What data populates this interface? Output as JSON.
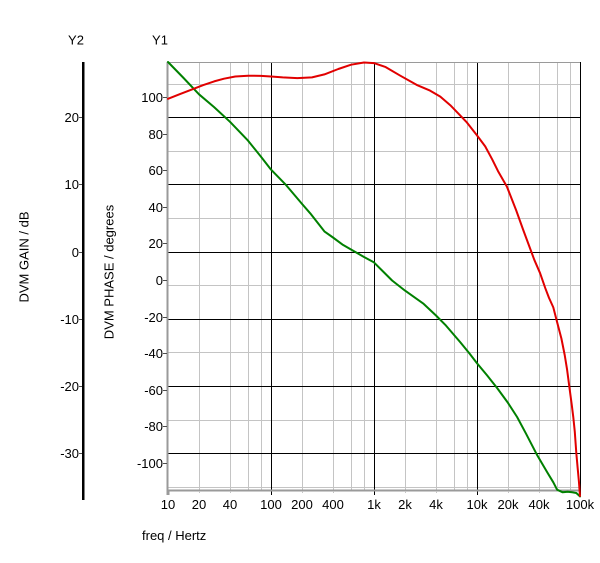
{
  "headers": {
    "y2": "Y2",
    "y1": "Y1"
  },
  "colors": {
    "background": "#ffffff",
    "gain_curve": "#008000",
    "phase_curve": "#e10000",
    "grid_major": "#000000",
    "grid_minor": "#c4c4c4",
    "axis_line": "#9a9a9a",
    "y2_axis_line": "#000000",
    "tick_mark": "#4d4d4d",
    "text": "#000000"
  },
  "chart_data": {
    "type": "line",
    "title": "",
    "grid": "major+minor",
    "x_axis": {
      "label": "freq / Hertz",
      "scale": "log",
      "min": 10,
      "max": 100000,
      "tick_values": [
        10,
        20,
        40,
        100,
        200,
        400,
        1000,
        2000,
        4000,
        10000,
        20000,
        40000,
        100000
      ],
      "tick_labels": [
        "10",
        "20",
        "40",
        "100",
        "200",
        "400",
        "1k",
        "2k",
        "4k",
        "10k",
        "20k",
        "40k",
        "100k"
      ],
      "major_gridlines": [
        100,
        1000,
        10000,
        100000
      ],
      "minor_multiples": [
        2,
        4,
        6,
        8
      ],
      "minor_decades": [
        10,
        100,
        1000,
        10000
      ]
    },
    "y1_axis": {
      "label": "DVM PHASE / degrees",
      "min": -115.3,
      "max": 119.1,
      "ticks": [
        100,
        80,
        60,
        40,
        20,
        0,
        -20,
        -40,
        -60,
        -80,
        -100
      ]
    },
    "y2_axis": {
      "label": "DVM GAIN / dB",
      "min": -35.6,
      "max": 28.2,
      "ticks": [
        20,
        10,
        0,
        -10,
        -20,
        -30
      ],
      "minor_ticks": [
        25,
        15,
        5,
        -5,
        -15,
        -25,
        -35
      ]
    },
    "series": [
      {
        "name": "gain",
        "axis": "y2",
        "color": "#008000",
        "points": [
          [
            10,
            28.2
          ],
          [
            14,
            25.9
          ],
          [
            20,
            23.4
          ],
          [
            28,
            21.5
          ],
          [
            40,
            19.3
          ],
          [
            60,
            16.5
          ],
          [
            80,
            14.1
          ],
          [
            100,
            12.2
          ],
          [
            140,
            9.9
          ],
          [
            200,
            7.1
          ],
          [
            240,
            5.7
          ],
          [
            330,
            3.0
          ],
          [
            400,
            2.1
          ],
          [
            500,
            1.0
          ],
          [
            650,
            0.0
          ],
          [
            800,
            -0.8
          ],
          [
            1000,
            -1.6
          ],
          [
            1500,
            -4.3
          ],
          [
            2000,
            -5.8
          ],
          [
            3000,
            -7.7
          ],
          [
            4000,
            -9.5
          ],
          [
            5000,
            -11.0
          ],
          [
            6900,
            -13.5
          ],
          [
            8500,
            -15.2
          ],
          [
            10000,
            -16.6
          ],
          [
            12500,
            -18.4
          ],
          [
            15700,
            -20.3
          ],
          [
            20000,
            -22.5
          ],
          [
            24500,
            -24.6
          ],
          [
            30000,
            -27.1
          ],
          [
            38500,
            -30.3
          ],
          [
            48000,
            -32.8
          ],
          [
            55000,
            -34.3
          ],
          [
            60000,
            -35.4
          ],
          [
            68000,
            -35.8
          ],
          [
            76000,
            -35.7
          ],
          [
            84000,
            -35.8
          ],
          [
            92000,
            -35.9
          ],
          [
            100000,
            -36.4
          ]
        ]
      },
      {
        "name": "phase",
        "axis": "y1",
        "color": "#e10000",
        "points": [
          [
            10,
            99.0
          ],
          [
            13,
            101.5
          ],
          [
            17,
            104.0
          ],
          [
            22,
            106.5
          ],
          [
            28,
            108.5
          ],
          [
            35,
            110.0
          ],
          [
            45,
            111.2
          ],
          [
            60,
            111.6
          ],
          [
            80,
            111.5
          ],
          [
            100,
            111.2
          ],
          [
            130,
            110.7
          ],
          [
            180,
            110.3
          ],
          [
            250,
            110.7
          ],
          [
            330,
            112.3
          ],
          [
            450,
            115.3
          ],
          [
            600,
            117.6
          ],
          [
            800,
            118.8
          ],
          [
            1000,
            118.5
          ],
          [
            1300,
            116.3
          ],
          [
            1800,
            111.6
          ],
          [
            2600,
            106.6
          ],
          [
            3500,
            103.5
          ],
          [
            4400,
            100.2
          ],
          [
            5500,
            95.5
          ],
          [
            6800,
            90.2
          ],
          [
            8000,
            86.0
          ],
          [
            10000,
            79.0
          ],
          [
            12000,
            73.0
          ],
          [
            14000,
            66.0
          ],
          [
            16000,
            59.5
          ],
          [
            19500,
            51.0
          ],
          [
            24000,
            38.0
          ],
          [
            28000,
            27.5
          ],
          [
            31400,
            20.0
          ],
          [
            36000,
            11.0
          ],
          [
            41000,
            3.7
          ],
          [
            46000,
            -4.5
          ],
          [
            50000,
            -9.8
          ],
          [
            55000,
            -15.0
          ],
          [
            60000,
            -23.0
          ],
          [
            66000,
            -32.0
          ],
          [
            71000,
            -41.0
          ],
          [
            75000,
            -49.0
          ],
          [
            79000,
            -59.0
          ],
          [
            83000,
            -68.0
          ],
          [
            86000,
            -75.0
          ],
          [
            89000,
            -83.0
          ],
          [
            92000,
            -94.5
          ],
          [
            95000,
            -103.0
          ],
          [
            97500,
            -110.0
          ],
          [
            100000,
            -118.0
          ]
        ]
      }
    ]
  }
}
